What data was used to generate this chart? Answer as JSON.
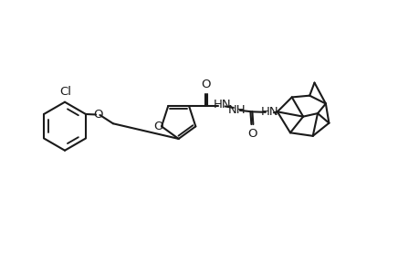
{
  "bg_color": "#ffffff",
  "line_color": "#1a1a1a",
  "line_width": 1.5,
  "font_size": 9.5,
  "fig_width": 4.6,
  "fig_height": 3.0,
  "dpi": 100,
  "xlim": [
    0,
    46
  ],
  "ylim": [
    0,
    30
  ]
}
